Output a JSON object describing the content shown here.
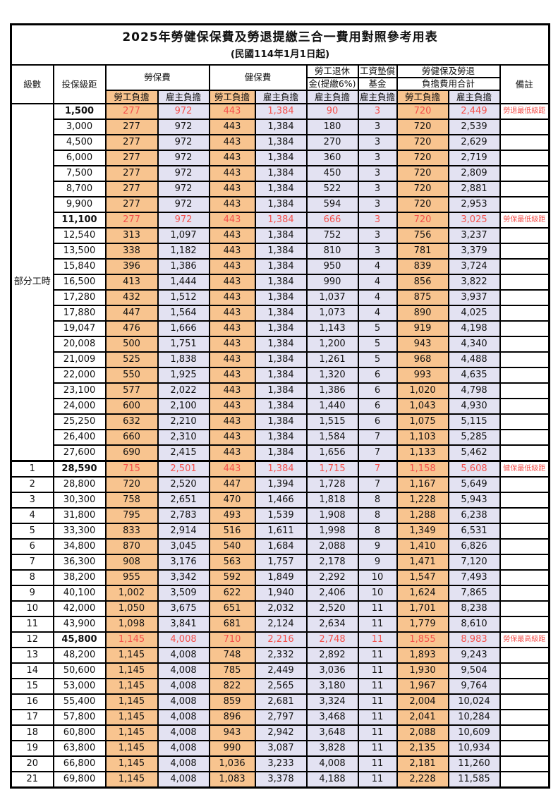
{
  "title": "2025年勞健保保費及勞退提繳三合一費用對照參考用表",
  "subtitle": "(民國114年1月1日起)",
  "part_time_label": "部分工時",
  "columns": {
    "level": "級數",
    "bracket": "投保級距",
    "labor_insurance": "勞保費",
    "health_insurance": "健保費",
    "pension_line1": "勞工退休",
    "pension_line2": "金(提繳6%)",
    "wage_fund_line1": "工資墊償",
    "wage_fund_line2": "基金",
    "total_line1": "勞健保及勞退",
    "total_line2": "負擔費用合計",
    "remark": "備註",
    "worker_share": "勞工負擔",
    "employer_share": "雇主負擔"
  },
  "colors": {
    "worker_share_bg": "#F8C48F",
    "employer_share_bg": "#E3E2F2",
    "highlight_text": "#F4514C",
    "border": "#000000"
  },
  "rows": [
    {
      "level": "",
      "bracket": "1,500",
      "values": [
        "277",
        "972",
        "443",
        "1,384",
        "90",
        "3",
        "720",
        "2,449"
      ],
      "remark": "勞退最低級距",
      "highlight": true
    },
    {
      "level": "",
      "bracket": "3,000",
      "values": [
        "277",
        "972",
        "443",
        "1,384",
        "180",
        "3",
        "720",
        "2,539"
      ],
      "remark": "",
      "highlight": false
    },
    {
      "level": "",
      "bracket": "4,500",
      "values": [
        "277",
        "972",
        "443",
        "1,384",
        "270",
        "3",
        "720",
        "2,629"
      ],
      "remark": "",
      "highlight": false
    },
    {
      "level": "",
      "bracket": "6,000",
      "values": [
        "277",
        "972",
        "443",
        "1,384",
        "360",
        "3",
        "720",
        "2,719"
      ],
      "remark": "",
      "highlight": false
    },
    {
      "level": "",
      "bracket": "7,500",
      "values": [
        "277",
        "972",
        "443",
        "1,384",
        "450",
        "3",
        "720",
        "2,809"
      ],
      "remark": "",
      "highlight": false
    },
    {
      "level": "",
      "bracket": "8,700",
      "values": [
        "277",
        "972",
        "443",
        "1,384",
        "522",
        "3",
        "720",
        "2,881"
      ],
      "remark": "",
      "highlight": false
    },
    {
      "level": "",
      "bracket": "9,900",
      "values": [
        "277",
        "972",
        "443",
        "1,384",
        "594",
        "3",
        "720",
        "2,953"
      ],
      "remark": "",
      "highlight": false
    },
    {
      "level": "",
      "bracket": "11,100",
      "values": [
        "277",
        "972",
        "443",
        "1,384",
        "666",
        "3",
        "720",
        "3,025"
      ],
      "remark": "勞保最低級距",
      "highlight": true
    },
    {
      "level": "",
      "bracket": "12,540",
      "values": [
        "313",
        "1,097",
        "443",
        "1,384",
        "752",
        "3",
        "756",
        "3,237"
      ],
      "remark": "",
      "highlight": false
    },
    {
      "level": "",
      "bracket": "13,500",
      "values": [
        "338",
        "1,182",
        "443",
        "1,384",
        "810",
        "3",
        "781",
        "3,379"
      ],
      "remark": "",
      "highlight": false
    },
    {
      "level": "",
      "bracket": "15,840",
      "values": [
        "396",
        "1,386",
        "443",
        "1,384",
        "950",
        "4",
        "839",
        "3,724"
      ],
      "remark": "",
      "highlight": false
    },
    {
      "level": "",
      "bracket": "16,500",
      "values": [
        "413",
        "1,444",
        "443",
        "1,384",
        "990",
        "4",
        "856",
        "3,822"
      ],
      "remark": "",
      "highlight": false
    },
    {
      "level": "",
      "bracket": "17,280",
      "values": [
        "432",
        "1,512",
        "443",
        "1,384",
        "1,037",
        "4",
        "875",
        "3,937"
      ],
      "remark": "",
      "highlight": false
    },
    {
      "level": "",
      "bracket": "17,880",
      "values": [
        "447",
        "1,564",
        "443",
        "1,384",
        "1,073",
        "4",
        "890",
        "4,025"
      ],
      "remark": "",
      "highlight": false
    },
    {
      "level": "",
      "bracket": "19,047",
      "values": [
        "476",
        "1,666",
        "443",
        "1,384",
        "1,143",
        "5",
        "919",
        "4,198"
      ],
      "remark": "",
      "highlight": false
    },
    {
      "level": "",
      "bracket": "20,008",
      "values": [
        "500",
        "1,751",
        "443",
        "1,384",
        "1,200",
        "5",
        "943",
        "4,340"
      ],
      "remark": "",
      "highlight": false
    },
    {
      "level": "",
      "bracket": "21,009",
      "values": [
        "525",
        "1,838",
        "443",
        "1,384",
        "1,261",
        "5",
        "968",
        "4,488"
      ],
      "remark": "",
      "highlight": false
    },
    {
      "level": "",
      "bracket": "22,000",
      "values": [
        "550",
        "1,925",
        "443",
        "1,384",
        "1,320",
        "6",
        "993",
        "4,635"
      ],
      "remark": "",
      "highlight": false
    },
    {
      "level": "",
      "bracket": "23,100",
      "values": [
        "577",
        "2,022",
        "443",
        "1,384",
        "1,386",
        "6",
        "1,020",
        "4,798"
      ],
      "remark": "",
      "highlight": false
    },
    {
      "level": "",
      "bracket": "24,000",
      "values": [
        "600",
        "2,100",
        "443",
        "1,384",
        "1,440",
        "6",
        "1,043",
        "4,930"
      ],
      "remark": "",
      "highlight": false
    },
    {
      "level": "",
      "bracket": "25,250",
      "values": [
        "632",
        "2,210",
        "443",
        "1,384",
        "1,515",
        "6",
        "1,075",
        "5,115"
      ],
      "remark": "",
      "highlight": false
    },
    {
      "level": "",
      "bracket": "26,400",
      "values": [
        "660",
        "2,310",
        "443",
        "1,384",
        "1,584",
        "7",
        "1,103",
        "5,285"
      ],
      "remark": "",
      "highlight": false
    },
    {
      "level": "",
      "bracket": "27,600",
      "values": [
        "690",
        "2,415",
        "443",
        "1,384",
        "1,656",
        "7",
        "1,133",
        "5,462"
      ],
      "remark": "",
      "highlight": false
    },
    {
      "level": "1",
      "bracket": "28,590",
      "values": [
        "715",
        "2,501",
        "443",
        "1,384",
        "1,715",
        "7",
        "1,158",
        "5,608"
      ],
      "remark": "健保最低級距",
      "highlight": true
    },
    {
      "level": "2",
      "bracket": "28,800",
      "values": [
        "720",
        "2,520",
        "447",
        "1,394",
        "1,728",
        "7",
        "1,167",
        "5,649"
      ],
      "remark": "",
      "highlight": false
    },
    {
      "level": "3",
      "bracket": "30,300",
      "values": [
        "758",
        "2,651",
        "470",
        "1,466",
        "1,818",
        "8",
        "1,228",
        "5,943"
      ],
      "remark": "",
      "highlight": false
    },
    {
      "level": "4",
      "bracket": "31,800",
      "values": [
        "795",
        "2,783",
        "493",
        "1,539",
        "1,908",
        "8",
        "1,288",
        "6,238"
      ],
      "remark": "",
      "highlight": false
    },
    {
      "level": "5",
      "bracket": "33,300",
      "values": [
        "833",
        "2,914",
        "516",
        "1,611",
        "1,998",
        "8",
        "1,349",
        "6,531"
      ],
      "remark": "",
      "highlight": false
    },
    {
      "level": "6",
      "bracket": "34,800",
      "values": [
        "870",
        "3,045",
        "540",
        "1,684",
        "2,088",
        "9",
        "1,410",
        "6,826"
      ],
      "remark": "",
      "highlight": false
    },
    {
      "level": "7",
      "bracket": "36,300",
      "values": [
        "908",
        "3,176",
        "563",
        "1,757",
        "2,178",
        "9",
        "1,471",
        "7,120"
      ],
      "remark": "",
      "highlight": false
    },
    {
      "level": "8",
      "bracket": "38,200",
      "values": [
        "955",
        "3,342",
        "592",
        "1,849",
        "2,292",
        "10",
        "1,547",
        "7,493"
      ],
      "remark": "",
      "highlight": false
    },
    {
      "level": "9",
      "bracket": "40,100",
      "values": [
        "1,002",
        "3,509",
        "622",
        "1,940",
        "2,406",
        "10",
        "1,624",
        "7,865"
      ],
      "remark": "",
      "highlight": false
    },
    {
      "level": "10",
      "bracket": "42,000",
      "values": [
        "1,050",
        "3,675",
        "651",
        "2,032",
        "2,520",
        "11",
        "1,701",
        "8,238"
      ],
      "remark": "",
      "highlight": false
    },
    {
      "level": "11",
      "bracket": "43,900",
      "values": [
        "1,098",
        "3,841",
        "681",
        "2,124",
        "2,634",
        "11",
        "1,779",
        "8,610"
      ],
      "remark": "",
      "highlight": false
    },
    {
      "level": "12",
      "bracket": "45,800",
      "values": [
        "1,145",
        "4,008",
        "710",
        "2,216",
        "2,748",
        "11",
        "1,855",
        "8,983"
      ],
      "remark": "勞保最高級距",
      "highlight": true
    },
    {
      "level": "13",
      "bracket": "48,200",
      "values": [
        "1,145",
        "4,008",
        "748",
        "2,332",
        "2,892",
        "11",
        "1,893",
        "9,243"
      ],
      "remark": "",
      "highlight": false
    },
    {
      "level": "14",
      "bracket": "50,600",
      "values": [
        "1,145",
        "4,008",
        "785",
        "2,449",
        "3,036",
        "11",
        "1,930",
        "9,504"
      ],
      "remark": "",
      "highlight": false
    },
    {
      "level": "15",
      "bracket": "53,000",
      "values": [
        "1,145",
        "4,008",
        "822",
        "2,565",
        "3,180",
        "11",
        "1,967",
        "9,764"
      ],
      "remark": "",
      "highlight": false
    },
    {
      "level": "16",
      "bracket": "55,400",
      "values": [
        "1,145",
        "4,008",
        "859",
        "2,681",
        "3,324",
        "11",
        "2,004",
        "10,024"
      ],
      "remark": "",
      "highlight": false
    },
    {
      "level": "17",
      "bracket": "57,800",
      "values": [
        "1,145",
        "4,008",
        "896",
        "2,797",
        "3,468",
        "11",
        "2,041",
        "10,284"
      ],
      "remark": "",
      "highlight": false
    },
    {
      "level": "18",
      "bracket": "60,800",
      "values": [
        "1,145",
        "4,008",
        "943",
        "2,942",
        "3,648",
        "11",
        "2,088",
        "10,609"
      ],
      "remark": "",
      "highlight": false
    },
    {
      "level": "19",
      "bracket": "63,800",
      "values": [
        "1,145",
        "4,008",
        "990",
        "3,087",
        "3,828",
        "11",
        "2,135",
        "10,934"
      ],
      "remark": "",
      "highlight": false
    },
    {
      "level": "20",
      "bracket": "66,800",
      "values": [
        "1,145",
        "4,008",
        "1,036",
        "3,233",
        "4,008",
        "11",
        "2,181",
        "11,260"
      ],
      "remark": "",
      "highlight": false
    },
    {
      "level": "21",
      "bracket": "69,800",
      "values": [
        "1,145",
        "4,008",
        "1,083",
        "3,378",
        "4,188",
        "11",
        "2,228",
        "11,585"
      ],
      "remark": "",
      "highlight": false
    }
  ]
}
